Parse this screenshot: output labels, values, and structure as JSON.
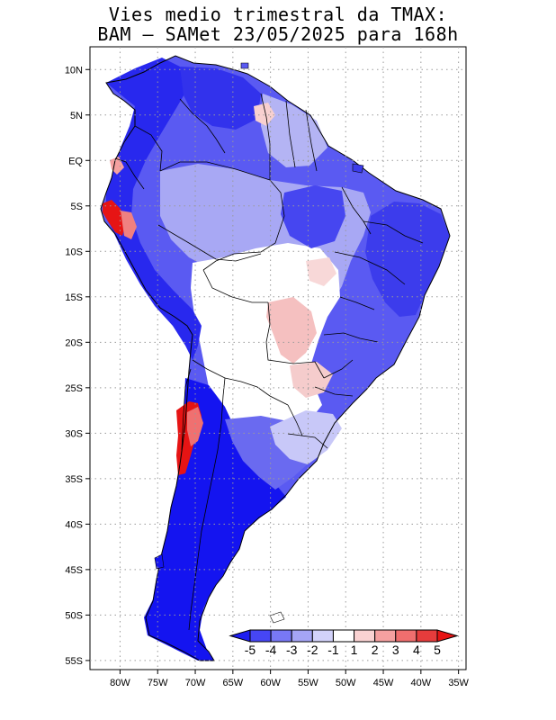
{
  "title": {
    "line1": "Vies medio trimestral da TMAX:",
    "line2": "BAM – SAMet 23/05/2025  para 168h"
  },
  "lat_labels": [
    "10N",
    "5N",
    "EQ",
    "5S",
    "10S",
    "15S",
    "20S",
    "25S",
    "30S",
    "35S",
    "40S",
    "45S",
    "50S",
    "55S"
  ],
  "lat_values": [
    10,
    5,
    0,
    -5,
    -10,
    -15,
    -20,
    -25,
    -30,
    -35,
    -40,
    -45,
    -50,
    -55
  ],
  "lon_labels": [
    "80W",
    "75W",
    "70W",
    "65W",
    "60W",
    "55W",
    "50W",
    "45W",
    "40W",
    "35W"
  ],
  "lon_values": [
    -80,
    -75,
    -70,
    -65,
    -60,
    -55,
    -50,
    -45,
    -40,
    -35
  ],
  "colorbar": {
    "labels": [
      "-5",
      "-4",
      "-3",
      "-2",
      "-1",
      "1",
      "2",
      "3",
      "4",
      "5"
    ],
    "colors": [
      "#1e1ef0",
      "#4646f5",
      "#7878f5",
      "#a5a5f5",
      "#d2d2fa",
      "#ffffff",
      "#fad2d2",
      "#f5a0a0",
      "#f06e6e",
      "#e63c3c",
      "#e61414"
    ]
  },
  "colors": {
    "land_neutral": "#ffffff",
    "coast": "#000000",
    "grid": "#9a9a9a"
  }
}
